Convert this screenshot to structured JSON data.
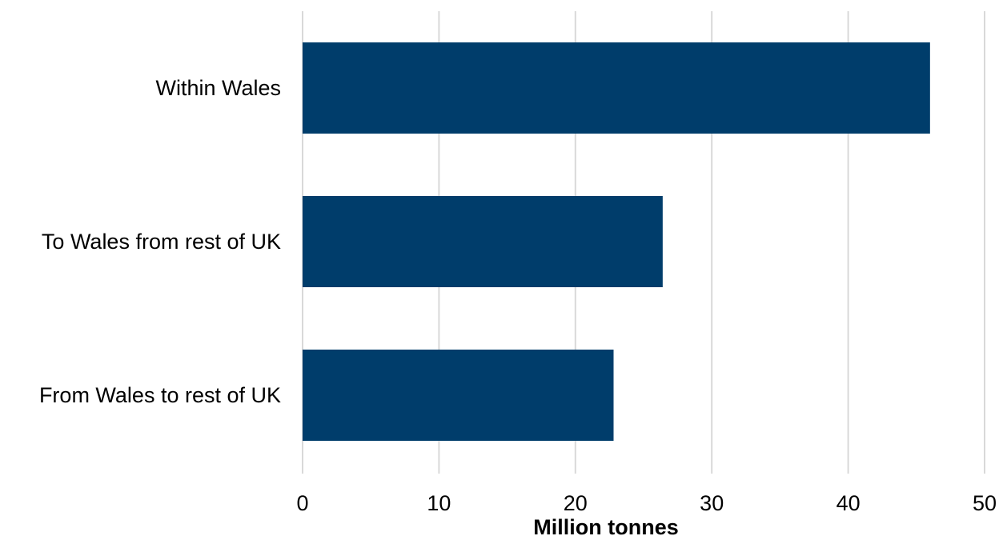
{
  "chart_data": {
    "type": "bar",
    "orientation": "horizontal",
    "categories": [
      "Within Wales",
      "To Wales from rest of UK",
      "From Wales to rest of UK"
    ],
    "values": [
      46.0,
      26.4,
      22.8
    ],
    "xlabel": "Million tonnes",
    "ylabel": "",
    "xlim": [
      0,
      50
    ],
    "xticks": [
      0,
      10,
      20,
      30,
      40,
      50
    ],
    "xtick_labels": [
      "0",
      "10",
      "20",
      "30",
      "40",
      "50"
    ],
    "grid": "vertical",
    "legend": "none",
    "bar_color": "#003d6b",
    "grid_color": "#d9d9d9"
  }
}
